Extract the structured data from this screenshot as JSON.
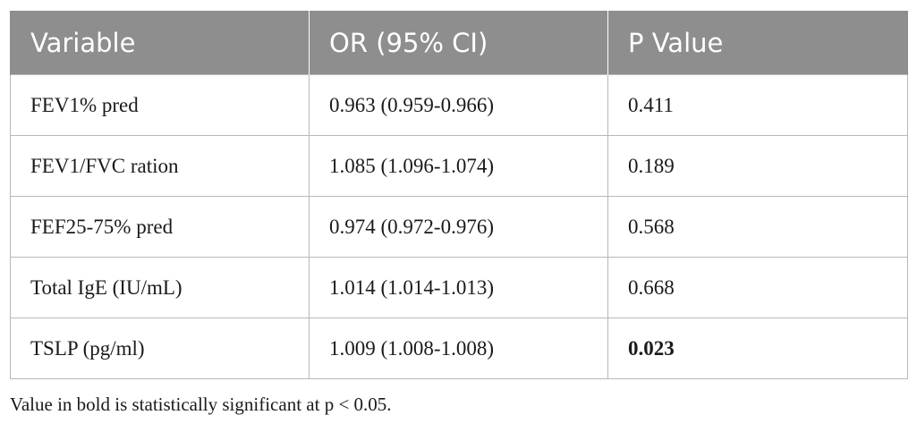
{
  "table": {
    "headers": [
      "Variable",
      "OR (95% CI)",
      "P Value"
    ],
    "rows": [
      {
        "variable": "FEV1% pred",
        "or_ci": "0.963 (0.959-0.966)",
        "p_value": "0.411",
        "significant": false
      },
      {
        "variable": "FEV1/FVC ration",
        "or_ci": "1.085 (1.096-1.074)",
        "p_value": "0.189",
        "significant": false
      },
      {
        "variable": "FEF25-75% pred",
        "or_ci": "0.974 (0.972-0.976)",
        "p_value": "0.568",
        "significant": false
      },
      {
        "variable": "Total IgE (IU/mL)",
        "or_ci": "1.014 (1.014-1.013)",
        "p_value": "0.668",
        "significant": false
      },
      {
        "variable": "TSLP (pg/ml)",
        "or_ci": "1.009 (1.008-1.008)",
        "p_value": "0.023",
        "significant": true
      }
    ]
  },
  "footnote": "Value in bold is statistically significant at p < 0.05.",
  "colors": {
    "header_bg": "#8e8e8e",
    "header_text": "#ffffff",
    "border": "#b8b8b8"
  }
}
